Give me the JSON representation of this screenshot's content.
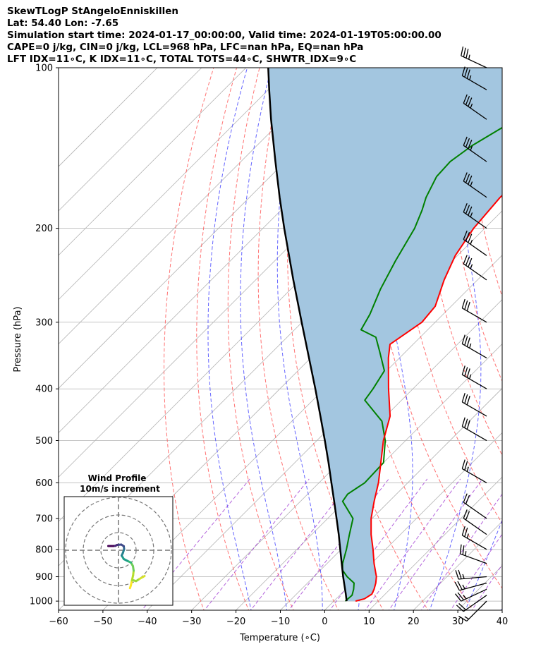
{
  "header": {
    "line1": "SkewTLogP StAngeloEnniskillen",
    "line2": "Lat: 54.40   Lon: -7.65",
    "line3": "Simulation start time: 2024-01-17_00:00:00, Valid time: 2024-01-19T05:00:00.00",
    "line4": "CAPE=0 j/kg, CIN=0 j/kg, LCL=968 hPa, LFC=nan hPa, EQ=nan hPa",
    "line5": "LFT IDX=11∘C, K IDX=11∘C, TOTAL TOTS=44∘C, SHWTR_IDX=9∘C"
  },
  "colors": {
    "temperature": "#ff0000",
    "dewpoint": "#008000",
    "parcel": "#000000",
    "cape_fill": "#a3c6e0",
    "dry_adiabat": "#ff5a5a",
    "moist_adiabat": "#4a4aff",
    "mixing_ratio": "#9b30d0",
    "isotherm": "#b3b3b3"
  },
  "chart_data": {
    "type": "skew-t log-p",
    "xlabel": "Temperature (∘C)",
    "ylabel": "Pressure (hPa)",
    "xlim": [
      -60,
      40
    ],
    "ylim": [
      1040,
      100
    ],
    "x_ticks": [
      "−60",
      "−50",
      "−40",
      "−30",
      "−20",
      "−10",
      "0",
      "10",
      "20",
      "30",
      "40"
    ],
    "y_ticks": [
      "1000",
      "900",
      "800",
      "700",
      "600",
      "500",
      "400",
      "300",
      "200",
      "100"
    ],
    "grid": true,
    "temperature_profile": [
      {
        "p": 1000,
        "t": 4.9
      },
      {
        "p": 990,
        "t": 6.4
      },
      {
        "p": 970,
        "t": 7.0
      },
      {
        "p": 950,
        "t": 6.4
      },
      {
        "p": 925,
        "t": 5.4
      },
      {
        "p": 900,
        "t": 4.1
      },
      {
        "p": 850,
        "t": 0.6
      },
      {
        "p": 800,
        "t": -2.8
      },
      {
        "p": 750,
        "t": -6.6
      },
      {
        "p": 700,
        "t": -10.2
      },
      {
        "p": 650,
        "t": -13.4
      },
      {
        "p": 600,
        "t": -16.6
      },
      {
        "p": 550,
        "t": -20.6
      },
      {
        "p": 500,
        "t": -25.0
      },
      {
        "p": 450,
        "t": -29.0
      },
      {
        "p": 400,
        "t": -35.5
      },
      {
        "p": 350,
        "t": -42.5
      },
      {
        "p": 330,
        "t": -45.2
      },
      {
        "p": 300,
        "t": -43.0
      },
      {
        "p": 280,
        "t": -43.6
      },
      {
        "p": 250,
        "t": -47.5
      },
      {
        "p": 225,
        "t": -50.5
      },
      {
        "p": 200,
        "t": -52.5
      },
      {
        "p": 175,
        "t": -53.5
      },
      {
        "p": 150,
        "t": -53.0
      },
      {
        "p": 125,
        "t": -52.2
      },
      {
        "p": 110,
        "t": -50.5
      },
      {
        "p": 100,
        "t": -50.5
      }
    ],
    "dewpoint_profile": [
      {
        "p": 1000,
        "t": 2.6
      },
      {
        "p": 975,
        "t": 2.8
      },
      {
        "p": 950,
        "t": 1.8
      },
      {
        "p": 925,
        "t": 0.5
      },
      {
        "p": 900,
        "t": -2.5
      },
      {
        "p": 875,
        "t": -5.0
      },
      {
        "p": 850,
        "t": -6.5
      },
      {
        "p": 800,
        "t": -8.8
      },
      {
        "p": 750,
        "t": -11.5
      },
      {
        "p": 700,
        "t": -14.3
      },
      {
        "p": 650,
        "t": -20.5
      },
      {
        "p": 630,
        "t": -21.0
      },
      {
        "p": 600,
        "t": -19.7
      },
      {
        "p": 550,
        "t": -20.0
      },
      {
        "p": 500,
        "t": -24.6
      },
      {
        "p": 460,
        "t": -29.7
      },
      {
        "p": 420,
        "t": -38.3
      },
      {
        "p": 400,
        "t": -39.0
      },
      {
        "p": 370,
        "t": -40.5
      },
      {
        "p": 340,
        "t": -46.0
      },
      {
        "p": 320,
        "t": -50.0
      },
      {
        "p": 310,
        "t": -55.0
      },
      {
        "p": 290,
        "t": -56.5
      },
      {
        "p": 260,
        "t": -59.8
      },
      {
        "p": 230,
        "t": -62.8
      },
      {
        "p": 200,
        "t": -65.8
      },
      {
        "p": 185,
        "t": -68.2
      },
      {
        "p": 175,
        "t": -70.2
      },
      {
        "p": 160,
        "t": -72.5
      },
      {
        "p": 150,
        "t": -72.8
      },
      {
        "p": 140,
        "t": -71.5
      },
      {
        "p": 125,
        "t": -67.5
      },
      {
        "p": 110,
        "t": -63.5
      },
      {
        "p": 100,
        "t": -61.0
      }
    ],
    "parcel_profile": [
      {
        "p": 1000,
        "t": 2.9
      },
      {
        "p": 968,
        "t": 1.0
      },
      {
        "p": 900,
        "t": -3.4
      },
      {
        "p": 850,
        "t": -6.7
      },
      {
        "p": 800,
        "t": -10.2
      },
      {
        "p": 750,
        "t": -13.9
      },
      {
        "p": 700,
        "t": -18.0
      },
      {
        "p": 650,
        "t": -22.4
      },
      {
        "p": 600,
        "t": -27.2
      },
      {
        "p": 550,
        "t": -32.4
      },
      {
        "p": 500,
        "t": -38.2
      },
      {
        "p": 450,
        "t": -44.7
      },
      {
        "p": 400,
        "t": -52.0
      },
      {
        "p": 350,
        "t": -60.4
      },
      {
        "p": 300,
        "t": -70.1
      },
      {
        "p": 250,
        "t": -81.5
      },
      {
        "p": 200,
        "t": -95.2
      },
      {
        "p": 175,
        "t": -103.2
      },
      {
        "p": 150,
        "t": -112.2
      },
      {
        "p": 125,
        "t": -122.7
      },
      {
        "p": 110,
        "t": -129.8
      },
      {
        "p": 100,
        "t": -135.0
      }
    ],
    "wind_barbs": [
      {
        "p": 1000,
        "dir": 225,
        "speed_kt": 15
      },
      {
        "p": 975,
        "dir": 235,
        "speed_kt": 20
      },
      {
        "p": 950,
        "dir": 245,
        "speed_kt": 25
      },
      {
        "p": 925,
        "dir": 255,
        "speed_kt": 25
      },
      {
        "p": 900,
        "dir": 265,
        "speed_kt": 25
      },
      {
        "p": 850,
        "dir": 290,
        "speed_kt": 25
      },
      {
        "p": 800,
        "dir": 300,
        "speed_kt": 25
      },
      {
        "p": 750,
        "dir": 305,
        "speed_kt": 20
      },
      {
        "p": 700,
        "dir": 305,
        "speed_kt": 20
      },
      {
        "p": 600,
        "dir": 300,
        "speed_kt": 25
      },
      {
        "p": 500,
        "dir": 300,
        "speed_kt": 30
      },
      {
        "p": 450,
        "dir": 300,
        "speed_kt": 30
      },
      {
        "p": 400,
        "dir": 300,
        "speed_kt": 35
      },
      {
        "p": 350,
        "dir": 300,
        "speed_kt": 35
      },
      {
        "p": 300,
        "dir": 300,
        "speed_kt": 30
      },
      {
        "p": 250,
        "dir": 305,
        "speed_kt": 35
      },
      {
        "p": 225,
        "dir": 305,
        "speed_kt": 35
      },
      {
        "p": 200,
        "dir": 305,
        "speed_kt": 35
      },
      {
        "p": 175,
        "dir": 305,
        "speed_kt": 35
      },
      {
        "p": 150,
        "dir": 305,
        "speed_kt": 35
      },
      {
        "p": 125,
        "dir": 305,
        "speed_kt": 35
      },
      {
        "p": 110,
        "dir": 300,
        "speed_kt": 35
      },
      {
        "p": 100,
        "dir": 295,
        "speed_kt": 35
      }
    ],
    "hodograph": {
      "title": "Wind Profile",
      "subtitle": "10m/s increment",
      "rings_ms": [
        10,
        20,
        30
      ],
      "points": [
        {
          "u": 6.5,
          "v": -21.5
        },
        {
          "u": 7.0,
          "v": -20.0
        },
        {
          "u": 7.6,
          "v": -17.2
        },
        {
          "u": 8.3,
          "v": -14.2
        },
        {
          "u": 8.6,
          "v": -11.6
        },
        {
          "u": 8.2,
          "v": -9.0
        },
        {
          "u": 7.1,
          "v": -7.0
        },
        {
          "u": 5.0,
          "v": -6.0
        },
        {
          "u": 3.0,
          "v": -5.0
        },
        {
          "u": 1.8,
          "v": -3.0
        },
        {
          "u": 2.5,
          "v": -1.5
        },
        {
          "u": 3.2,
          "v": 0.6
        },
        {
          "u": 3.0,
          "v": 2.3
        },
        {
          "u": 1.6,
          "v": 3.2
        },
        {
          "u": -0.8,
          "v": 3.0
        },
        {
          "u": -1.8,
          "v": 2.5
        },
        {
          "u": -3.0,
          "v": 2.4
        },
        {
          "u": -5.8,
          "v": 2.4
        }
      ],
      "branch": [
        {
          "u": 8.3,
          "v": -17.0
        },
        {
          "u": 10.0,
          "v": -17.5
        },
        {
          "u": 12.0,
          "v": -16.2
        },
        {
          "u": 13.8,
          "v": -15.2
        },
        {
          "u": 14.8,
          "v": -14.6
        }
      ]
    }
  }
}
